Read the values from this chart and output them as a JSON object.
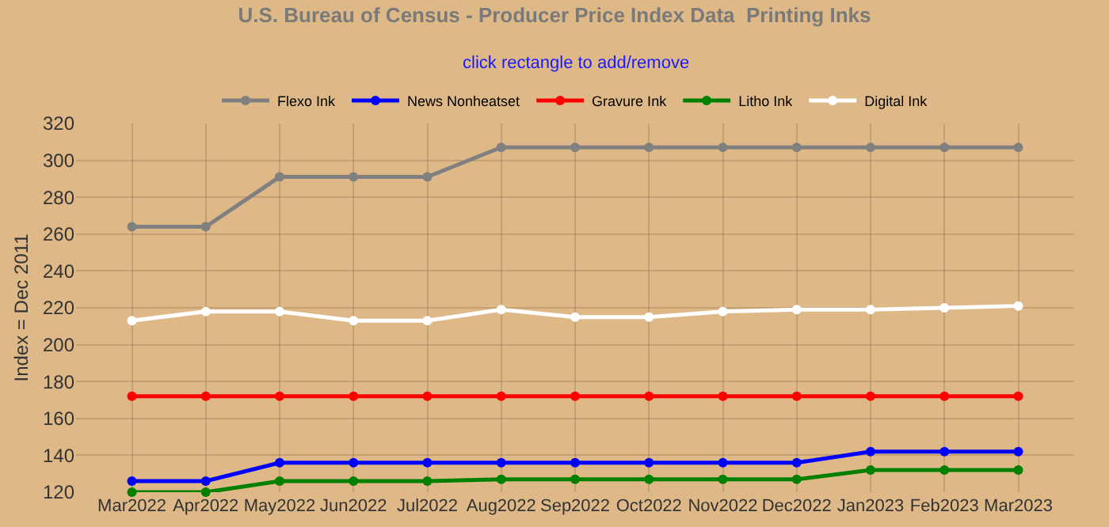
{
  "chart_data": {
    "type": "line",
    "title": "U.S. Bureau of Census - Producer Price Index Data  Printing Inks",
    "subtitle": "click rectangle to add/remove",
    "ylabel": "Index = Dec 2011",
    "categories": [
      "Mar2022",
      "Apr2022",
      "May2022",
      "Jun2022",
      "Jul2022",
      "Aug2022",
      "Sep2022",
      "Oct2022",
      "Nov2022",
      "Dec2022",
      "Jan2023",
      "Feb2023",
      "Mar2023"
    ],
    "series": [
      {
        "name": "Flexo Ink",
        "color": "#808080",
        "values": [
          264,
          264,
          291,
          291,
          291,
          307,
          307,
          307,
          307,
          307,
          307,
          307,
          307
        ]
      },
      {
        "name": "News Nonheatset",
        "color": "#0000ff",
        "values": [
          126,
          126,
          136,
          136,
          136,
          136,
          136,
          136,
          136,
          136,
          142,
          142,
          142
        ]
      },
      {
        "name": "Gravure Ink",
        "color": "#ff0000",
        "values": [
          172,
          172,
          172,
          172,
          172,
          172,
          172,
          172,
          172,
          172,
          172,
          172,
          172
        ]
      },
      {
        "name": "Litho Ink",
        "color": "#008000",
        "values": [
          120,
          120,
          126,
          126,
          126,
          127,
          127,
          127,
          127,
          127,
          132,
          132,
          132
        ]
      },
      {
        "name": "Digital Ink",
        "color": "#ffffff",
        "values": [
          213,
          218,
          218,
          213,
          213,
          219,
          215,
          215,
          218,
          219,
          219,
          220,
          221
        ]
      }
    ],
    "ylim": [
      120,
      320
    ],
    "yticks": [
      120,
      140,
      160,
      180,
      200,
      220,
      240,
      260,
      280,
      300,
      320
    ],
    "grid": true,
    "legend": "top",
    "marker": "circle",
    "line_style": "solid"
  }
}
